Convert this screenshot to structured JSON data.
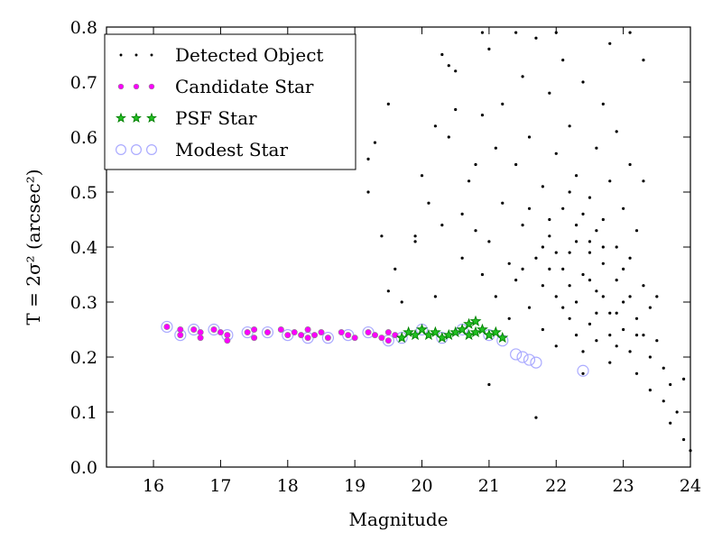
{
  "chart_data": {
    "type": "scatter",
    "xlabel": "Magnitude",
    "ylabel": "T = 2σ² (arcsec²)",
    "xlim": [
      15.3,
      24.0
    ],
    "ylim": [
      0.0,
      0.8
    ],
    "x_ticks": [
      "16",
      "17",
      "18",
      "19",
      "20",
      "21",
      "22",
      "23",
      "24"
    ],
    "y_ticks": [
      "0.0",
      "0.1",
      "0.2",
      "0.3",
      "0.4",
      "0.5",
      "0.6",
      "0.7",
      "0.8"
    ],
    "legend_position": "top-left",
    "legend": [
      "Detected Object",
      "Candidate Star",
      "PSF Star",
      "Modest Star"
    ],
    "series": [
      {
        "name": "Detected Object",
        "marker": "dot",
        "color": "#000000",
        "points": [
          [
            19.2,
            0.56
          ],
          [
            19.3,
            0.59
          ],
          [
            19.5,
            0.66
          ],
          [
            19.4,
            0.42
          ],
          [
            19.2,
            0.5
          ],
          [
            19.5,
            0.32
          ],
          [
            19.6,
            0.36
          ],
          [
            19.7,
            0.3
          ],
          [
            19.9,
            0.42
          ],
          [
            19.9,
            0.41
          ],
          [
            20.0,
            0.53
          ],
          [
            20.1,
            0.48
          ],
          [
            20.2,
            0.31
          ],
          [
            20.3,
            0.44
          ],
          [
            20.2,
            0.62
          ],
          [
            20.3,
            0.75
          ],
          [
            20.4,
            0.73
          ],
          [
            20.5,
            0.72
          ],
          [
            20.4,
            0.6
          ],
          [
            20.5,
            0.65
          ],
          [
            20.6,
            0.46
          ],
          [
            20.6,
            0.38
          ],
          [
            20.7,
            0.52
          ],
          [
            20.8,
            0.55
          ],
          [
            20.8,
            0.43
          ],
          [
            20.9,
            0.35
          ],
          [
            20.9,
            0.64
          ],
          [
            21.0,
            0.76
          ],
          [
            21.0,
            0.41
          ],
          [
            21.1,
            0.31
          ],
          [
            21.1,
            0.58
          ],
          [
            21.2,
            0.66
          ],
          [
            21.2,
            0.48
          ],
          [
            21.3,
            0.37
          ],
          [
            21.3,
            0.27
          ],
          [
            21.4,
            0.34
          ],
          [
            21.4,
            0.55
          ],
          [
            21.5,
            0.71
          ],
          [
            21.5,
            0.44
          ],
          [
            21.6,
            0.29
          ],
          [
            21.6,
            0.6
          ],
          [
            21.7,
            0.38
          ],
          [
            21.7,
            0.78
          ],
          [
            21.8,
            0.51
          ],
          [
            21.8,
            0.33
          ],
          [
            21.8,
            0.25
          ],
          [
            21.9,
            0.68
          ],
          [
            21.9,
            0.42
          ],
          [
            22.0,
            0.31
          ],
          [
            22.0,
            0.57
          ],
          [
            22.0,
            0.22
          ],
          [
            22.1,
            0.74
          ],
          [
            22.1,
            0.47
          ],
          [
            22.1,
            0.36
          ],
          [
            22.2,
            0.27
          ],
          [
            22.2,
            0.62
          ],
          [
            22.2,
            0.39
          ],
          [
            22.3,
            0.53
          ],
          [
            22.3,
            0.3
          ],
          [
            22.3,
            0.44
          ],
          [
            22.4,
            0.21
          ],
          [
            22.4,
            0.7
          ],
          [
            22.4,
            0.35
          ],
          [
            22.5,
            0.49
          ],
          [
            22.5,
            0.26
          ],
          [
            22.5,
            0.41
          ],
          [
            22.6,
            0.58
          ],
          [
            22.6,
            0.32
          ],
          [
            22.6,
            0.23
          ],
          [
            22.7,
            0.45
          ],
          [
            22.7,
            0.37
          ],
          [
            22.7,
            0.66
          ],
          [
            22.8,
            0.28
          ],
          [
            22.8,
            0.52
          ],
          [
            22.8,
            0.19
          ],
          [
            22.9,
            0.4
          ],
          [
            22.9,
            0.34
          ],
          [
            22.9,
            0.61
          ],
          [
            23.0,
            0.25
          ],
          [
            23.0,
            0.47
          ],
          [
            23.0,
            0.3
          ],
          [
            23.1,
            0.55
          ],
          [
            23.1,
            0.21
          ],
          [
            23.1,
            0.38
          ],
          [
            23.2,
            0.27
          ],
          [
            23.2,
            0.43
          ],
          [
            23.2,
            0.17
          ],
          [
            23.3,
            0.33
          ],
          [
            23.3,
            0.24
          ],
          [
            23.3,
            0.52
          ],
          [
            23.4,
            0.2
          ],
          [
            23.4,
            0.29
          ],
          [
            23.4,
            0.14
          ],
          [
            23.5,
            0.23
          ],
          [
            23.5,
            0.31
          ],
          [
            23.6,
            0.18
          ],
          [
            23.6,
            0.12
          ],
          [
            23.7,
            0.15
          ],
          [
            23.7,
            0.08
          ],
          [
            23.8,
            0.1
          ],
          [
            23.9,
            0.16
          ],
          [
            23.9,
            0.05
          ],
          [
            24.0,
            0.03
          ],
          [
            22.4,
            0.17
          ],
          [
            21.7,
            0.09
          ],
          [
            21.0,
            0.15
          ],
          [
            23.3,
            0.74
          ],
          [
            23.1,
            0.79
          ],
          [
            22.8,
            0.77
          ],
          [
            22.0,
            0.79
          ],
          [
            21.4,
            0.79
          ],
          [
            20.9,
            0.79
          ],
          [
            21.9,
            0.36
          ],
          [
            22.3,
            0.41
          ],
          [
            22.6,
            0.28
          ],
          [
            22.5,
            0.39
          ],
          [
            22.2,
            0.33
          ],
          [
            22.7,
            0.31
          ],
          [
            22.8,
            0.24
          ],
          [
            23.0,
            0.36
          ],
          [
            22.9,
            0.22
          ],
          [
            22.1,
            0.29
          ],
          [
            21.9,
            0.45
          ],
          [
            22.0,
            0.39
          ],
          [
            22.4,
            0.46
          ],
          [
            22.6,
            0.43
          ],
          [
            22.3,
            0.24
          ],
          [
            22.5,
            0.34
          ],
          [
            21.8,
            0.4
          ],
          [
            21.6,
            0.47
          ],
          [
            21.5,
            0.36
          ],
          [
            22.2,
            0.5
          ],
          [
            22.7,
            0.4
          ],
          [
            23.1,
            0.31
          ],
          [
            23.2,
            0.24
          ],
          [
            22.9,
            0.28
          ]
        ]
      },
      {
        "name": "Candidate Star",
        "marker": "circle-filled",
        "color": "#ff00ff",
        "points": [
          [
            16.2,
            0.255
          ],
          [
            16.4,
            0.24
          ],
          [
            16.4,
            0.25
          ],
          [
            16.6,
            0.25
          ],
          [
            16.7,
            0.235
          ],
          [
            16.7,
            0.245
          ],
          [
            16.9,
            0.25
          ],
          [
            17.0,
            0.245
          ],
          [
            17.1,
            0.24
          ],
          [
            17.1,
            0.23
          ],
          [
            17.4,
            0.245
          ],
          [
            17.5,
            0.25
          ],
          [
            17.5,
            0.235
          ],
          [
            17.7,
            0.245
          ],
          [
            17.9,
            0.25
          ],
          [
            18.0,
            0.24
          ],
          [
            18.1,
            0.245
          ],
          [
            18.2,
            0.24
          ],
          [
            18.3,
            0.235
          ],
          [
            18.3,
            0.25
          ],
          [
            18.4,
            0.24
          ],
          [
            18.5,
            0.245
          ],
          [
            18.6,
            0.235
          ],
          [
            18.8,
            0.245
          ],
          [
            18.9,
            0.24
          ],
          [
            19.0,
            0.235
          ],
          [
            19.2,
            0.245
          ],
          [
            19.3,
            0.24
          ],
          [
            19.4,
            0.235
          ],
          [
            19.5,
            0.23
          ],
          [
            19.5,
            0.245
          ],
          [
            19.6,
            0.24
          ]
        ]
      },
      {
        "name": "PSF Star",
        "marker": "star",
        "color": "#008000",
        "points": [
          [
            19.7,
            0.235
          ],
          [
            19.8,
            0.245
          ],
          [
            19.9,
            0.24
          ],
          [
            20.0,
            0.25
          ],
          [
            20.1,
            0.24
          ],
          [
            20.2,
            0.245
          ],
          [
            20.3,
            0.235
          ],
          [
            20.4,
            0.24
          ],
          [
            20.5,
            0.245
          ],
          [
            20.6,
            0.25
          ],
          [
            20.7,
            0.24
          ],
          [
            20.7,
            0.26
          ],
          [
            20.8,
            0.245
          ],
          [
            20.8,
            0.265
          ],
          [
            20.9,
            0.25
          ],
          [
            21.0,
            0.24
          ],
          [
            21.1,
            0.245
          ],
          [
            21.2,
            0.235
          ]
        ]
      },
      {
        "name": "Modest Star",
        "marker": "circle-open",
        "color": "#aaaaff",
        "points": [
          [
            16.2,
            0.255
          ],
          [
            16.4,
            0.24
          ],
          [
            16.6,
            0.25
          ],
          [
            16.9,
            0.25
          ],
          [
            17.1,
            0.24
          ],
          [
            17.4,
            0.245
          ],
          [
            17.7,
            0.245
          ],
          [
            18.0,
            0.24
          ],
          [
            18.3,
            0.235
          ],
          [
            18.6,
            0.235
          ],
          [
            18.9,
            0.24
          ],
          [
            19.2,
            0.245
          ],
          [
            19.5,
            0.23
          ],
          [
            19.7,
            0.235
          ],
          [
            20.0,
            0.25
          ],
          [
            20.3,
            0.235
          ],
          [
            20.6,
            0.25
          ],
          [
            21.0,
            0.24
          ],
          [
            21.2,
            0.23
          ],
          [
            21.4,
            0.205
          ],
          [
            21.5,
            0.2
          ],
          [
            21.6,
            0.195
          ],
          [
            21.7,
            0.19
          ],
          [
            22.4,
            0.175
          ]
        ]
      }
    ]
  }
}
